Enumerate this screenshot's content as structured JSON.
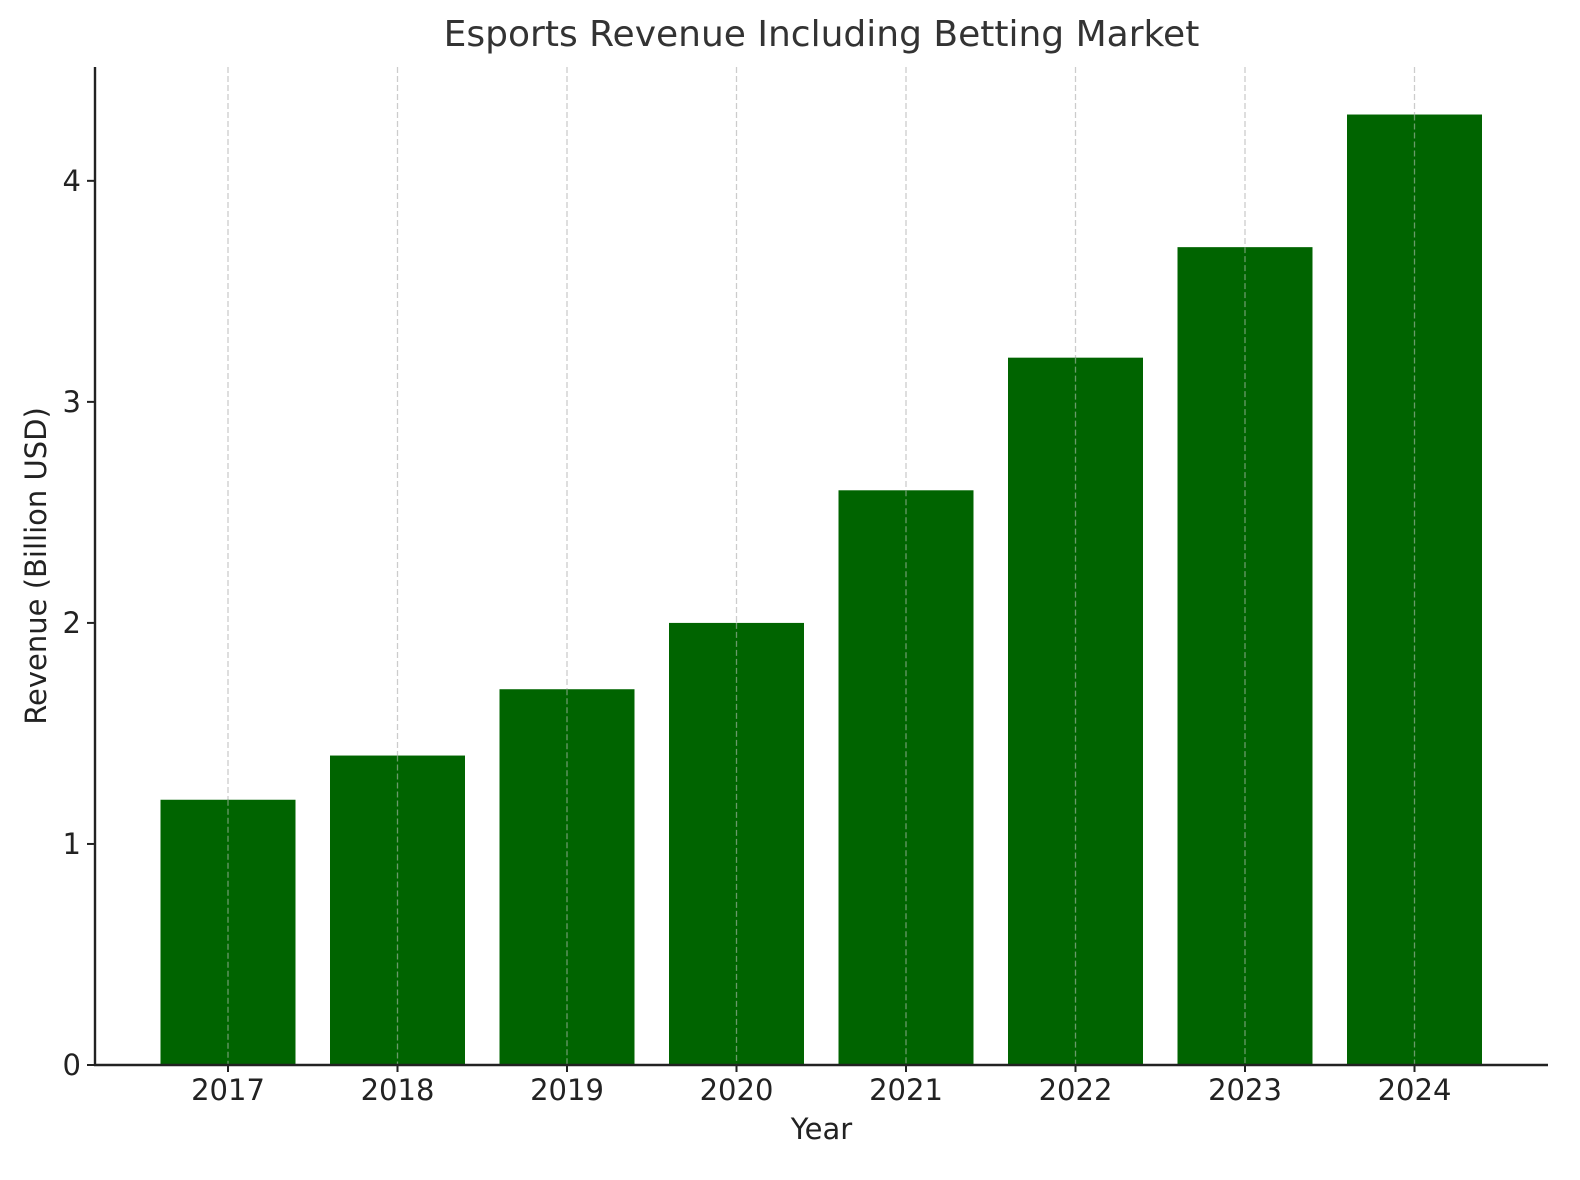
{
  "chart_data": {
    "type": "bar",
    "title": "Esports Revenue Including Betting Market",
    "xlabel": "Year",
    "ylabel": "Revenue (Billion USD)",
    "categories": [
      "2017",
      "2018",
      "2019",
      "2020",
      "2021",
      "2022",
      "2023",
      "2024"
    ],
    "values": [
      1.2,
      1.4,
      1.7,
      2.0,
      2.6,
      3.2,
      3.7,
      4.3
    ],
    "yticks": [
      0,
      1,
      2,
      3,
      4
    ],
    "ylim": [
      0,
      4.515
    ],
    "grid": {
      "x": true,
      "y": false,
      "style": "dashed",
      "color": "#cccccc"
    },
    "bar_color": "#006400",
    "legend": null
  }
}
